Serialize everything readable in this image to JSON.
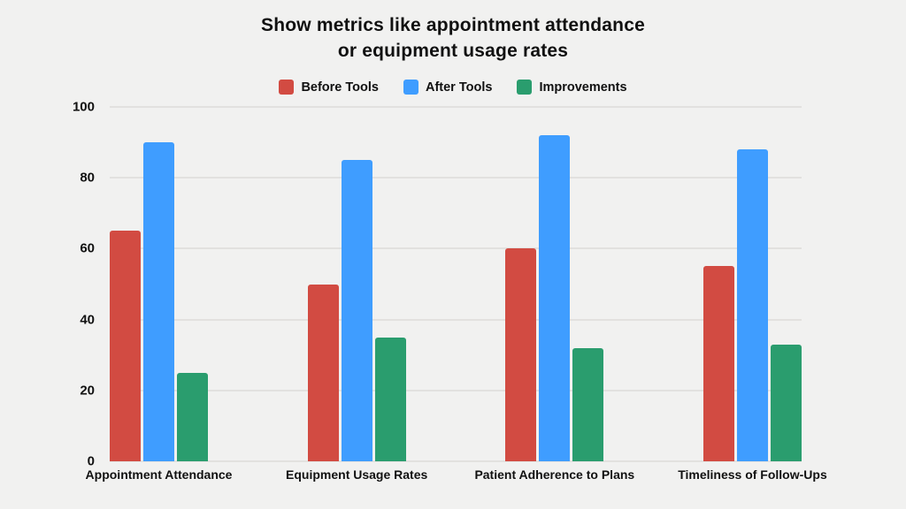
{
  "page": {
    "background_color": "#F1F1F0",
    "text_color": "#111111"
  },
  "chart_data": {
    "type": "bar",
    "title": "Show metrics like appointment attendance\nor equipment usage rates",
    "categories": [
      "Appointment Attendance",
      "Equipment Usage Rates",
      "Patient Adherence to Plans",
      "Timeliness of Follow-Ups"
    ],
    "series": [
      {
        "name": "Before Tools",
        "color": "#D24B42",
        "values": [
          65,
          50,
          60,
          55
        ]
      },
      {
        "name": "After Tools",
        "color": "#3F9DFF",
        "values": [
          90,
          85,
          92,
          88
        ]
      },
      {
        "name": "Improvements",
        "color": "#2A9D6E",
        "values": [
          25,
          35,
          32,
          33
        ]
      }
    ],
    "xlabel": "",
    "ylabel": "",
    "ylim": [
      0,
      100
    ],
    "yticks": [
      0,
      20,
      40,
      60,
      80,
      100
    ],
    "grid": true,
    "gridline_color": "#E2E1DF",
    "legend_position": "top-center"
  }
}
